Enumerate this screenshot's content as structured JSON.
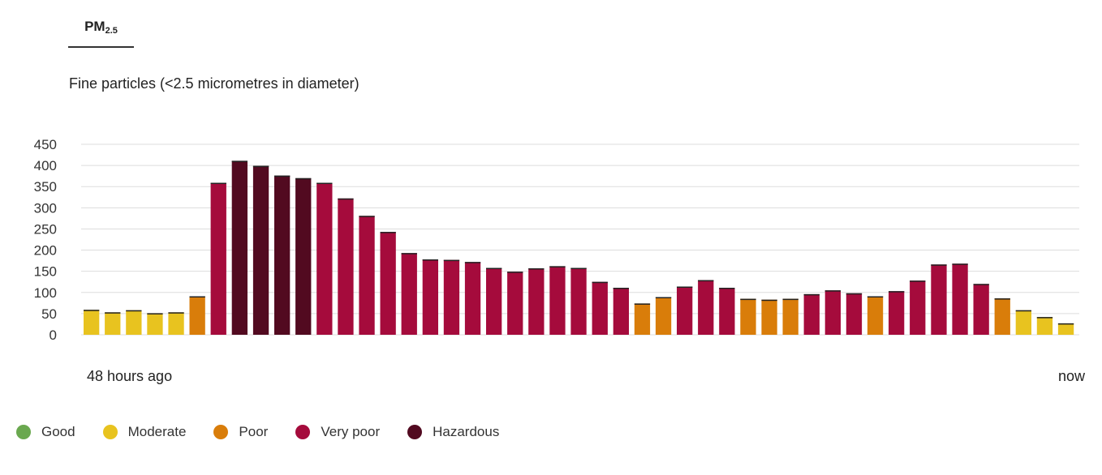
{
  "tab": {
    "label": "PM",
    "sub": "2.5"
  },
  "subtitle": "Fine particles (<2.5 micrometres in diameter)",
  "colors": {
    "good": "#6aa84f",
    "moderate": "#e8c31f",
    "poor": "#d97d0a",
    "very_poor": "#a50b3c",
    "hazardous": "#520a20"
  },
  "legend": [
    {
      "key": "good",
      "label": "Good"
    },
    {
      "key": "moderate",
      "label": "Moderate"
    },
    {
      "key": "poor",
      "label": "Poor"
    },
    {
      "key": "very_poor",
      "label": "Very poor"
    },
    {
      "key": "hazardous",
      "label": "Hazardous"
    }
  ],
  "chart_data": {
    "type": "bar",
    "ylim": [
      0,
      450
    ],
    "yticks": [
      0,
      50,
      100,
      150,
      200,
      250,
      300,
      350,
      400,
      450
    ],
    "grid": true,
    "x_start_label": "48 hours ago",
    "x_end_label": "now",
    "values": [
      59,
      53,
      58,
      51,
      53,
      91,
      359,
      411,
      399,
      376,
      370,
      359,
      322,
      281,
      243,
      193,
      178,
      177,
      172,
      158,
      149,
      157,
      162,
      158,
      125,
      111,
      74,
      89,
      114,
      129,
      111,
      85,
      83,
      85,
      96,
      105,
      98,
      91,
      103,
      128,
      166,
      168,
      120,
      86,
      58,
      42,
      27
    ],
    "categories": [
      "moderate",
      "moderate",
      "moderate",
      "moderate",
      "moderate",
      "poor",
      "very_poor",
      "hazardous",
      "hazardous",
      "hazardous",
      "hazardous",
      "very_poor",
      "very_poor",
      "very_poor",
      "very_poor",
      "very_poor",
      "very_poor",
      "very_poor",
      "very_poor",
      "very_poor",
      "very_poor",
      "very_poor",
      "very_poor",
      "very_poor",
      "very_poor",
      "very_poor",
      "poor",
      "poor",
      "very_poor",
      "very_poor",
      "very_poor",
      "poor",
      "poor",
      "poor",
      "very_poor",
      "very_poor",
      "very_poor",
      "poor",
      "very_poor",
      "very_poor",
      "very_poor",
      "very_poor",
      "very_poor",
      "poor",
      "moderate",
      "moderate",
      "moderate"
    ]
  }
}
